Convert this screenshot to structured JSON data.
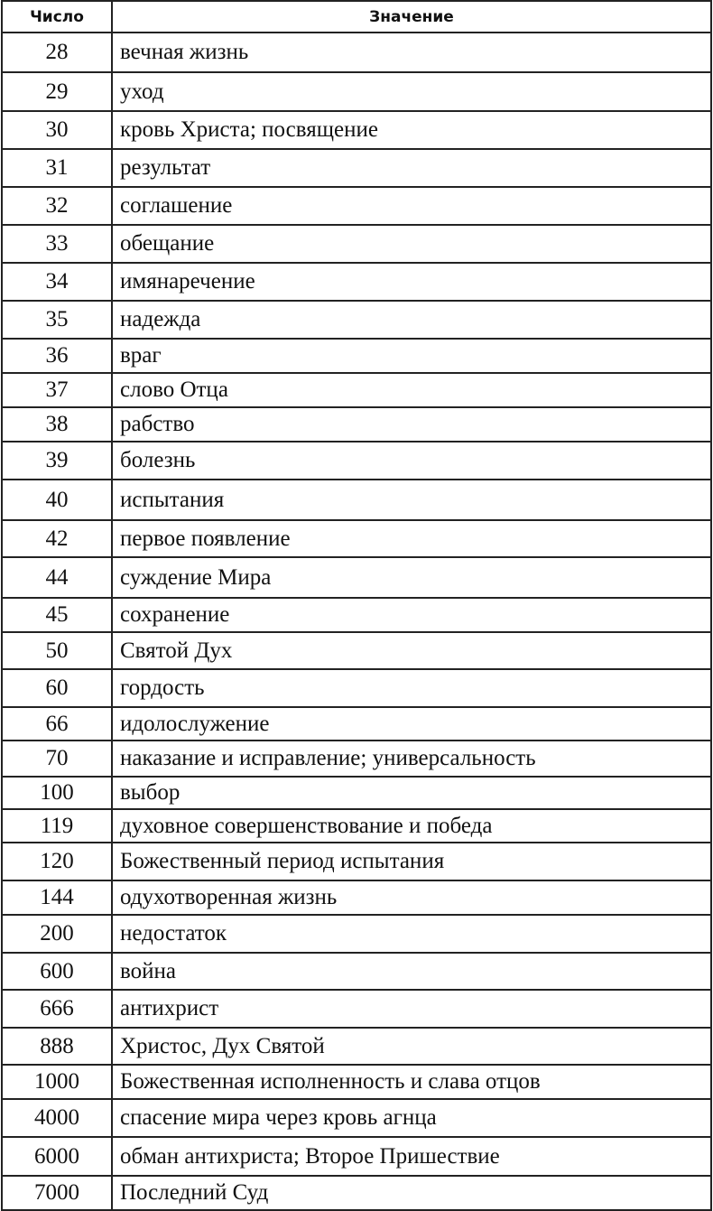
{
  "table": {
    "headers": [
      "Число",
      "Значение"
    ],
    "rows": [
      {
        "number": "28",
        "meaning": "вечная жизнь"
      },
      {
        "number": "29",
        "meaning": "уход"
      },
      {
        "number": "30",
        "meaning": "кровь Христа; посвящение"
      },
      {
        "number": "31",
        "meaning": "результат"
      },
      {
        "number": "32",
        "meaning": "соглашение"
      },
      {
        "number": "33",
        "meaning": "обещание"
      },
      {
        "number": "34",
        "meaning": "имянаречение"
      },
      {
        "number": "35",
        "meaning": "надежда"
      },
      {
        "number": "36",
        "meaning": "враг"
      },
      {
        "number": "37",
        "meaning": "слово Отца"
      },
      {
        "number": "38",
        "meaning": "рабство"
      },
      {
        "number": "39",
        "meaning": "болезнь"
      },
      {
        "number": "40",
        "meaning": "испытания"
      },
      {
        "number": "42",
        "meaning": "первое появление"
      },
      {
        "number": "44",
        "meaning": "суждение Мира"
      },
      {
        "number": "45",
        "meaning": "сохранение"
      },
      {
        "number": "50",
        "meaning": "Святой Дух"
      },
      {
        "number": "60",
        "meaning": "гордость"
      },
      {
        "number": "66",
        "meaning": "идолослужение"
      },
      {
        "number": "70",
        "meaning": "наказание и исправление; универсальность"
      },
      {
        "number": "100",
        "meaning": "выбор"
      },
      {
        "number": "119",
        "meaning": "духовное совершенствование и победа"
      },
      {
        "number": "120",
        "meaning": "Божественный период испытания"
      },
      {
        "number": "144",
        "meaning": "одухотворенная жизнь"
      },
      {
        "number": "200",
        "meaning": "недостаток"
      },
      {
        "number": "600",
        "meaning": "война"
      },
      {
        "number": "666",
        "meaning": "антихрист"
      },
      {
        "number": "888",
        "meaning": "Христос, Дух Святой"
      },
      {
        "number": "1000",
        "meaning": "Божественная исполненность и слава отцов"
      },
      {
        "number": "4000",
        "meaning": "спасение мира через кровь агнца"
      },
      {
        "number": "6000",
        "meaning": "обман антихриста; Второе Пришествие"
      },
      {
        "number": "7000",
        "meaning": "Последний Суд"
      }
    ]
  }
}
